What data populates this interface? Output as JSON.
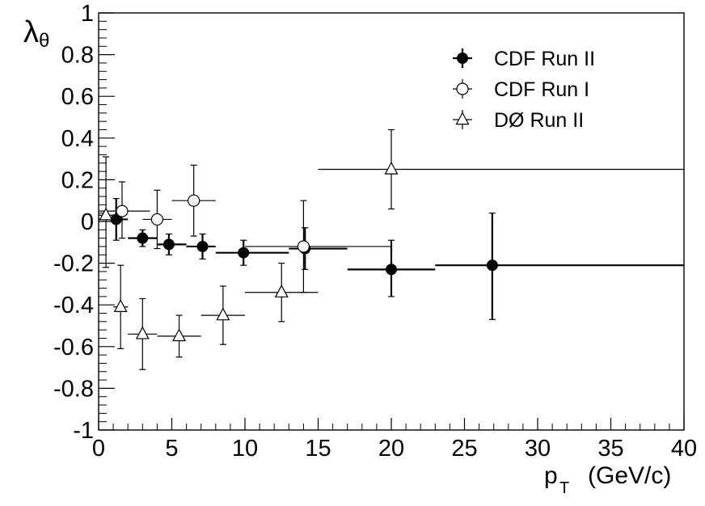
{
  "chart_data": {
    "type": "scatter",
    "title": "",
    "xlabel": "p",
    "xlabel_sub": "T",
    "xlabel_unit": "(GeV/c)",
    "ylabel": "λ",
    "ylabel_sub": "θ",
    "xlim": [
      0,
      40
    ],
    "ylim": [
      -1,
      1
    ],
    "x_ticks": [
      0,
      5,
      10,
      15,
      20,
      25,
      30,
      35,
      40
    ],
    "x_tick_labels": [
      "0",
      "5",
      "10",
      "15",
      "20",
      "25",
      "30",
      "35",
      "40"
    ],
    "y_ticks": [
      -1,
      -0.8,
      -0.6,
      -0.4,
      -0.2,
      0,
      0.2,
      0.4,
      0.6,
      0.8,
      1
    ],
    "y_tick_labels": [
      "-1",
      "-0.8",
      "-0.6",
      "-0.4",
      "-0.2",
      "0",
      "0.2",
      "0.4",
      "0.6",
      "0.8",
      "1"
    ],
    "grid": false,
    "legend_position": "top-right",
    "series": [
      {
        "name": "CDF Run II",
        "marker": "filled-circle",
        "points": [
          {
            "x": 1.2,
            "y": 0.01,
            "xlo": 0,
            "xhi": 2,
            "ylo": -0.09,
            "yhi": 0.11
          },
          {
            "x": 3.0,
            "y": -0.08,
            "xlo": 2,
            "xhi": 4,
            "ylo": -0.12,
            "yhi": -0.04
          },
          {
            "x": 4.8,
            "y": -0.11,
            "xlo": 4,
            "xhi": 6,
            "ylo": -0.16,
            "yhi": -0.06
          },
          {
            "x": 7.1,
            "y": -0.12,
            "xlo": 6,
            "xhi": 8,
            "ylo": -0.18,
            "yhi": -0.06
          },
          {
            "x": 9.9,
            "y": -0.15,
            "xlo": 8,
            "xhi": 13,
            "ylo": -0.21,
            "yhi": -0.09
          },
          {
            "x": 14.1,
            "y": -0.13,
            "xlo": 13,
            "xhi": 17,
            "ylo": -0.23,
            "yhi": -0.03
          },
          {
            "x": 20.0,
            "y": -0.23,
            "xlo": 17,
            "xhi": 23,
            "ylo": -0.36,
            "yhi": -0.09
          },
          {
            "x": 26.9,
            "y": -0.21,
            "xlo": 23,
            "xhi": 40,
            "ylo": -0.47,
            "yhi": 0.04
          }
        ]
      },
      {
        "name": "CDF Run I",
        "marker": "open-circle",
        "points": [
          {
            "x": 1.6,
            "y": 0.05,
            "xlo": 0,
            "xhi": 3.5,
            "ylo": -0.08,
            "yhi": 0.19
          },
          {
            "x": 4.0,
            "y": 0.01,
            "xlo": 3,
            "xhi": 5,
            "ylo": -0.13,
            "yhi": 0.15
          },
          {
            "x": 6.5,
            "y": 0.1,
            "xlo": 5,
            "xhi": 8,
            "ylo": -0.07,
            "yhi": 0.27
          },
          {
            "x": 14.0,
            "y": -0.12,
            "xlo": 10,
            "xhi": 20,
            "ylo": -0.34,
            "yhi": 0.1
          }
        ]
      },
      {
        "name": "DØ Run II",
        "marker": "open-triangle",
        "points": [
          {
            "x": 0.5,
            "y": 0.03,
            "xlo": 0,
            "xhi": 1,
            "ylo": -0.22,
            "yhi": 0.31
          },
          {
            "x": 1.5,
            "y": -0.41,
            "xlo": 1,
            "xhi": 2,
            "ylo": -0.61,
            "yhi": -0.21
          },
          {
            "x": 3.0,
            "y": -0.54,
            "xlo": 2,
            "xhi": 4,
            "ylo": -0.71,
            "yhi": -0.37
          },
          {
            "x": 5.5,
            "y": -0.55,
            "xlo": 4,
            "xhi": 7,
            "ylo": -0.65,
            "yhi": -0.45
          },
          {
            "x": 8.5,
            "y": -0.45,
            "xlo": 7,
            "xhi": 10,
            "ylo": -0.59,
            "yhi": -0.31
          },
          {
            "x": 12.5,
            "y": -0.34,
            "xlo": 10,
            "xhi": 15,
            "ylo": -0.48,
            "yhi": -0.2
          },
          {
            "x": 20.0,
            "y": 0.25,
            "xlo": 15,
            "xhi": 40,
            "ylo": 0.06,
            "yhi": 0.44
          }
        ]
      }
    ]
  }
}
